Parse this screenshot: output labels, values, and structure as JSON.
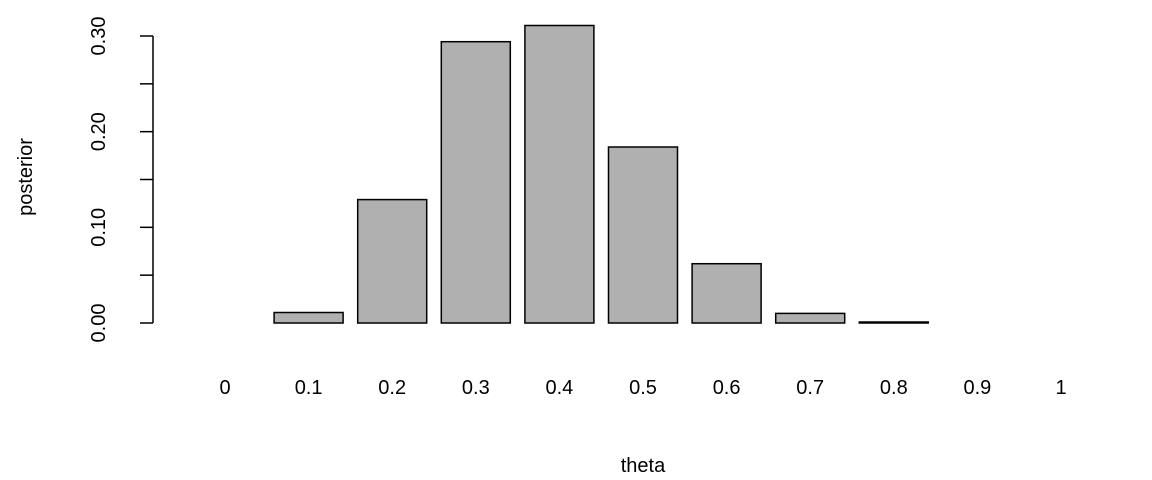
{
  "chart_data": {
    "type": "bar",
    "categories": [
      "0",
      "0.1",
      "0.2",
      "0.3",
      "0.4",
      "0.5",
      "0.6",
      "0.7",
      "0.8",
      "0.9",
      "1"
    ],
    "values": [
      0.0,
      0.011,
      0.129,
      0.294,
      0.311,
      0.184,
      0.062,
      0.01,
      0.001,
      0.0,
      0.0
    ],
    "title": "",
    "xlabel": "theta",
    "ylabel": "posterior",
    "ylim": [
      0,
      0.3
    ],
    "yticks": [
      0.0,
      0.05,
      0.1,
      0.15,
      0.2,
      0.25,
      0.3
    ],
    "ytick_labels": [
      "0.00",
      "",
      "0.10",
      "",
      "0.20",
      "",
      "0.30"
    ],
    "bar_color": "#b0b0b0",
    "bar_border_color": "#000000",
    "grid": false,
    "legend": "none"
  }
}
